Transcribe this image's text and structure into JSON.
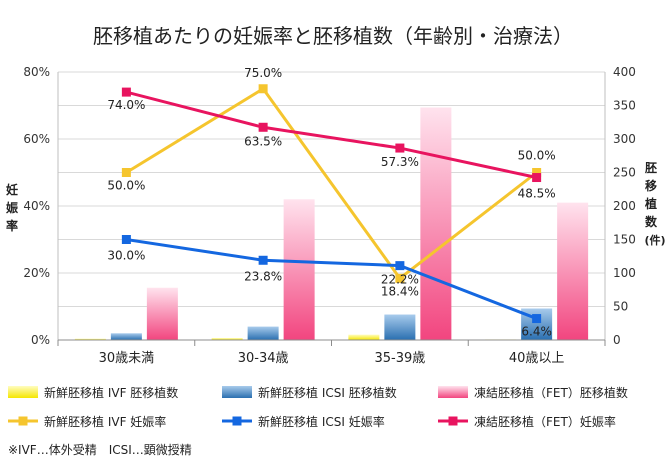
{
  "chart_data": {
    "type": "bar",
    "title": "胚移植あたりの妊娠率と胚移植数（年齢別・治療法）",
    "categories": [
      "30歳未満",
      "30-34歳",
      "35-39歳",
      "40歳以上"
    ],
    "y_left": {
      "label_chars": [
        "妊",
        "娠",
        "率"
      ],
      "range": [
        0,
        80
      ],
      "ticks": [
        "0%",
        "20%",
        "40%",
        "60%",
        "80%"
      ]
    },
    "y_right": {
      "label_chars": [
        "胚",
        "移",
        "植",
        "数",
        "(件)"
      ],
      "range": [
        0,
        400
      ],
      "ticks": [
        "0",
        "50",
        "100",
        "150",
        "200",
        "250",
        "300",
        "350",
        "400"
      ]
    },
    "grid": true,
    "legend_position": "bottom",
    "bar_series": [
      {
        "name": "新鮮胚移植 IVF 胚移植数",
        "values": [
          2,
          3,
          8,
          1
        ],
        "color": "#f5e600"
      },
      {
        "name": "新鮮胚移植 ICSI 胚移植数",
        "values": [
          10,
          20,
          38,
          47
        ],
        "color": "#3c87c8"
      },
      {
        "name": "凍結胚移植（FET）胚移植数",
        "values": [
          78,
          210,
          347,
          205
        ],
        "color": "#f06496"
      }
    ],
    "line_series": [
      {
        "name": "新鮮胚移植 IVF 妊娠率",
        "values": [
          50.0,
          75.0,
          18.4,
          50.0
        ],
        "labels": [
          "50.0%",
          "75.0%",
          "18.4%",
          "50.0%"
        ],
        "color": "#f5c52e",
        "marker": "square"
      },
      {
        "name": "新鮮胚移植 ICSI 妊娠率",
        "values": [
          30.0,
          23.8,
          22.2,
          6.4
        ],
        "labels": [
          "30.0%",
          "23.8%",
          "22.2%",
          "6.4%"
        ],
        "color": "#1467e0",
        "marker": "square"
      },
      {
        "name": "凍結胚移植（FET）妊娠率",
        "values": [
          74.0,
          63.5,
          57.3,
          48.5
        ],
        "labels": [
          "74.0%",
          "63.5%",
          "57.3%",
          "48.5%"
        ],
        "color": "#e8145f",
        "marker": "square"
      }
    ],
    "footnote": "※IVF…体外受精　ICSI…顕微授精"
  }
}
